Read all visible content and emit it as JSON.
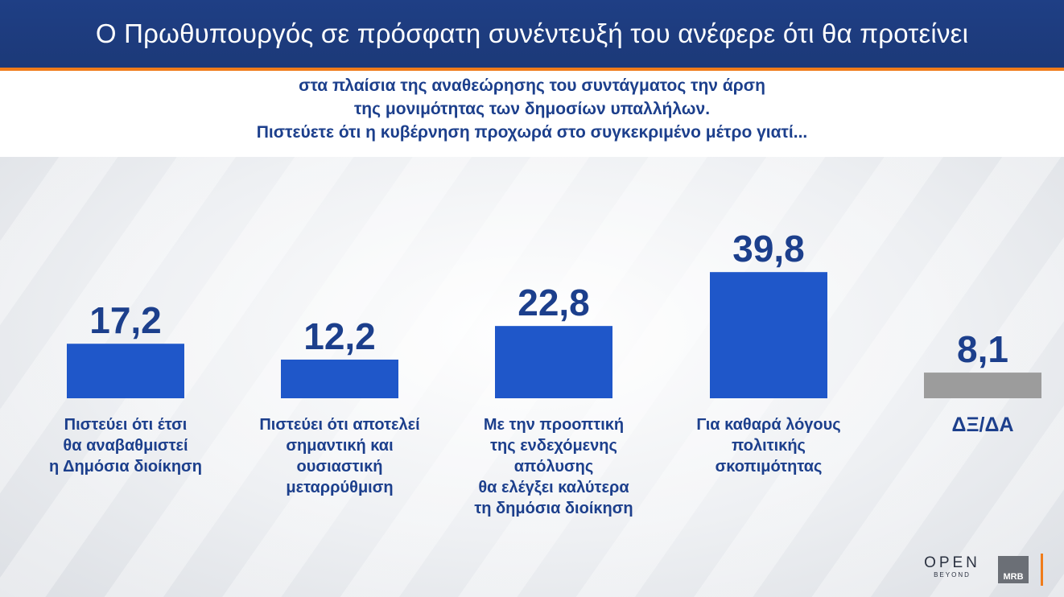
{
  "header": {
    "title": "Ο Πρωθυπουργός σε πρόσφατη συνέντευξή του ανέφερε ότι θα προτείνει"
  },
  "question": {
    "lines": [
      "στα πλαίσια της αναθεώρησης του συντάγματος την άρση",
      "της μονιμότητας των δημοσίων υπαλλήλων.",
      "Πιστεύετε ότι η κυβέρνηση προχωρά στο συγκεκριμένο μέτρο γιατί..."
    ]
  },
  "chart_data": {
    "type": "bar",
    "categories": [
      [
        "Πιστεύει ότι έτσι",
        "θα αναβαθμιστεί",
        "η Δημόσια διοίκηση"
      ],
      [
        "Πιστεύει ότι αποτελεί",
        "σημαντική και",
        "ουσιαστική",
        "μεταρρύθμιση"
      ],
      [
        "Με την προοπτική",
        "της ενδεχόμενης",
        "απόλυσης",
        "θα ελέγξει καλύτερα",
        "τη δημόσια διοίκηση"
      ],
      [
        "Για καθαρά λόγους",
        "πολιτικής",
        "σκοπιμότητας"
      ],
      [
        "ΔΞ/ΔΑ"
      ]
    ],
    "values": [
      17.2,
      12.2,
      22.8,
      39.8,
      8.1
    ],
    "value_labels": [
      "17,2",
      "12,2",
      "22,8",
      "39,8",
      "8,1"
    ],
    "colors": [
      "#1f57c9",
      "#1f57c9",
      "#1f57c9",
      "#1f57c9",
      "#9c9c9c"
    ],
    "ylim": [
      0,
      40
    ],
    "xlabel": "",
    "ylabel": ""
  },
  "logos": {
    "open_main": "OPEN",
    "open_sub": "BEYOND",
    "mrb": "MRB"
  }
}
